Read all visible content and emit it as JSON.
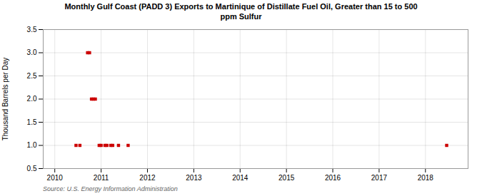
{
  "chart_data": {
    "type": "scatter",
    "title": "Monthly Gulf Coast (PADD 3) Exports to Martinique of Distillate Fuel Oil, Greater than 15 to 500\nppm Sulfur",
    "ylabel": "Thousand Barrels per Day",
    "source": "Source: U.S. Energy Information Administration",
    "x": [
      2010.458,
      2010.542,
      2010.708,
      2010.75,
      2010.792,
      2010.833,
      2010.875,
      2010.958,
      2011.0,
      2011.083,
      2011.125,
      2011.208,
      2011.25,
      2011.375,
      2011.583,
      2018.458
    ],
    "values": [
      1.0,
      1.0,
      3.0,
      3.0,
      2.0,
      2.0,
      2.0,
      1.0,
      1.0,
      1.0,
      1.0,
      1.0,
      1.0,
      1.0,
      1.0,
      1.0
    ],
    "color": "#cc0000",
    "marker": "square",
    "xlim": [
      2009.75,
      2018.92
    ],
    "ylim": [
      0.5,
      3.5
    ],
    "xticks": [
      2010,
      2011,
      2012,
      2013,
      2014,
      2015,
      2016,
      2017,
      2018
    ],
    "yticks": [
      0.5,
      {
        "value": 1.0,
        "label": "1.0"
      },
      1.5,
      {
        "value": 2.0,
        "label": "2.0"
      },
      2.5,
      {
        "value": 3.0,
        "label": "3.0"
      },
      3.5
    ],
    "grid": true
  }
}
